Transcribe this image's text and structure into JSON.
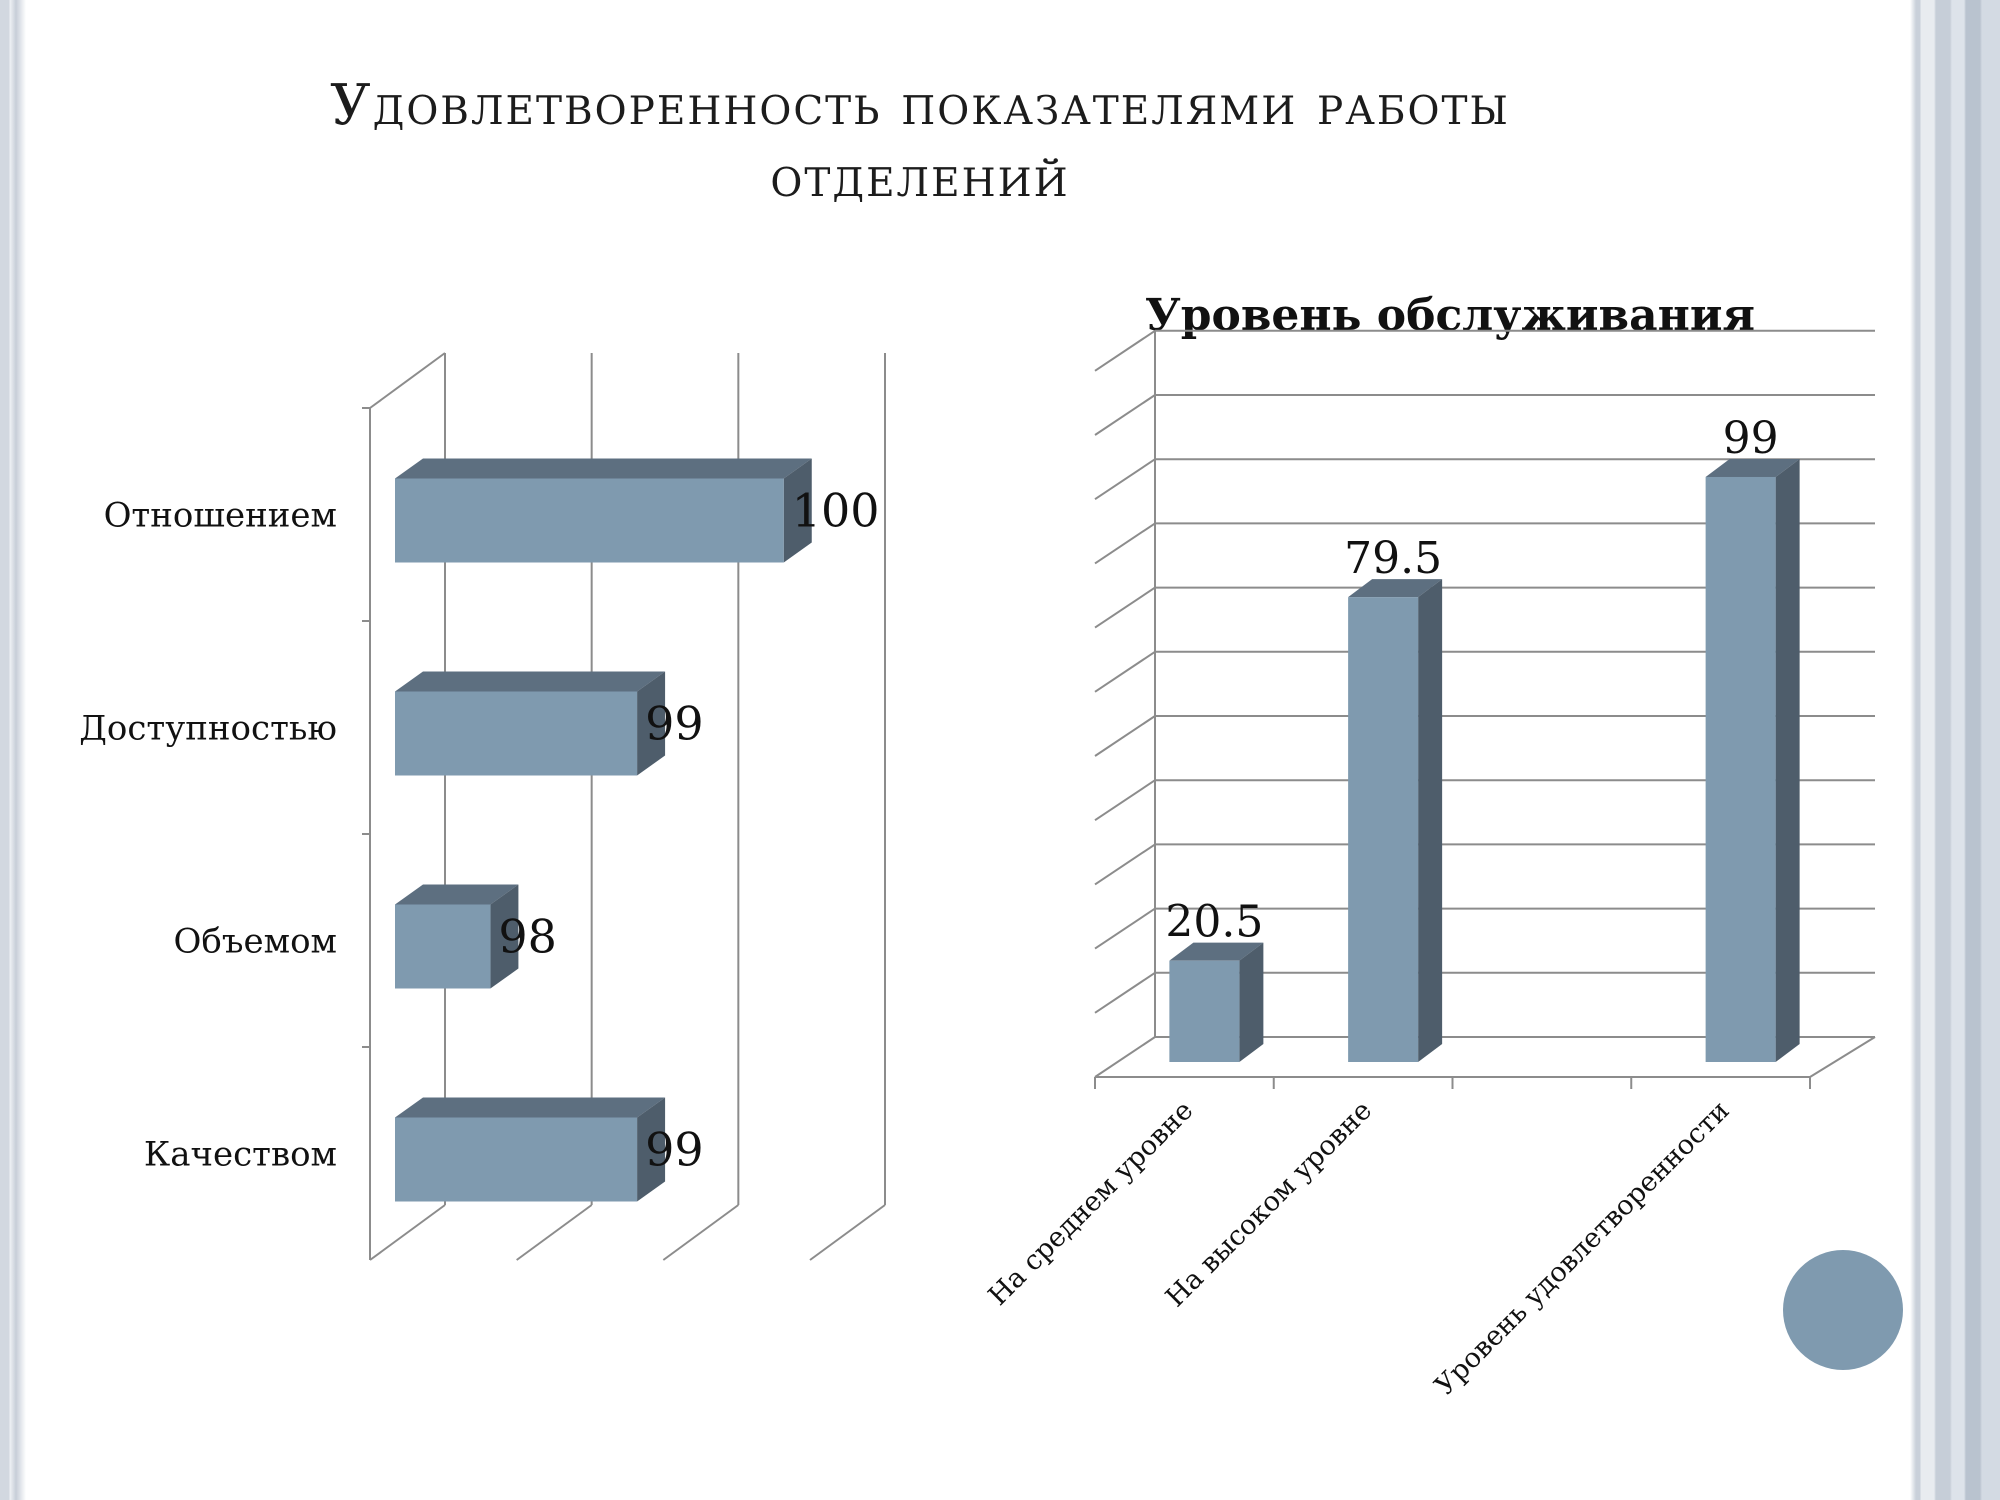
{
  "slide": {
    "title_line1": "Удовлетворенность показателями работы",
    "title_line2": "отделений"
  },
  "colors": {
    "bar_front": "#7f9aaf",
    "bar_top": "#5d6f80",
    "bar_side": "#4e5d6b",
    "grid": "#8c8c8c",
    "accent_circle": "#7f9aaf"
  },
  "chart_data": [
    {
      "type": "bar",
      "orientation": "horizontal",
      "style": "3d",
      "title": "",
      "categories": [
        "Отношением",
        "Доступностью",
        "Объемом",
        "Качеством"
      ],
      "values": [
        100,
        99,
        98,
        99
      ],
      "value_labels": [
        "100",
        "99",
        "98",
        "99"
      ],
      "xlim": [
        97,
        100
      ],
      "grid": true,
      "legend": "none"
    },
    {
      "type": "bar",
      "orientation": "vertical",
      "style": "3d",
      "title": "Уровень обслуживания",
      "categories": [
        "На среднем уровне",
        "На высоком уровне",
        "",
        "Уровень удовлетворенности"
      ],
      "values": [
        20.5,
        79.5,
        null,
        99
      ],
      "value_labels": [
        "20.5",
        "79.5",
        "",
        "99"
      ],
      "ylim": [
        0,
        105
      ],
      "grid": true,
      "legend": "none"
    }
  ]
}
